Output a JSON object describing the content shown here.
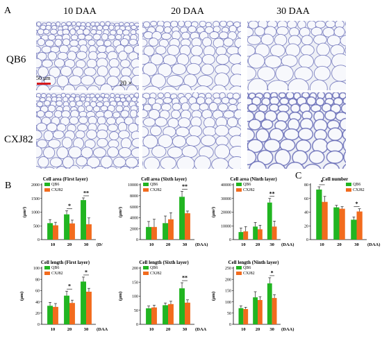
{
  "figure": {
    "panel_a": "A",
    "panel_b": "B",
    "panel_c": "C",
    "columns": [
      "10 DAA",
      "20 DAA",
      "30 DAA"
    ],
    "rows": [
      "QB6",
      "CXJ82"
    ],
    "scalebar": "50 μm",
    "magnification": "20 ×"
  },
  "colors": {
    "qb6": "#21b521",
    "cxj82": "#f26b1d",
    "stain": "#5a5fb0"
  },
  "chart_data": [
    {
      "type": "bar",
      "title": "Cell area (First layer)",
      "xlabel": "(D/",
      "ylabel": "(μm²)",
      "categories": [
        "10",
        "20",
        "30"
      ],
      "yticks": [
        "0",
        "500",
        "1000",
        "1500",
        "2000"
      ],
      "ylim": [
        0,
        2000
      ],
      "legend": "top-left",
      "series": [
        {
          "name": "QB6",
          "values": [
            600,
            920,
            1440
          ],
          "errors": [
            130,
            130,
            80
          ]
        },
        {
          "name": "CXJ82",
          "values": [
            520,
            590,
            560
          ],
          "errors": [
            110,
            120,
            230
          ]
        }
      ],
      "sig": [
        "",
        "*",
        "**"
      ]
    },
    {
      "type": "bar",
      "title": "Cell area (Sixth layer)",
      "xlabel": "(DAA)",
      "ylabel": "(μm²)",
      "categories": [
        "10",
        "20",
        "30"
      ],
      "yticks": [
        "0",
        "2000",
        "4000",
        "6000",
        "8000",
        "10000"
      ],
      "ylim": [
        0,
        10000
      ],
      "legend": "top-left",
      "series": [
        {
          "name": "QB6",
          "values": [
            2300,
            3000,
            7800
          ],
          "errors": [
            1000,
            1300,
            1000
          ]
        },
        {
          "name": "CXJ82",
          "values": [
            2300,
            3700,
            4800
          ],
          "errors": [
            1400,
            1200,
            400
          ]
        }
      ],
      "sig": [
        "",
        "",
        "**"
      ]
    },
    {
      "type": "bar",
      "title": "Cell area (Ninth layer)",
      "xlabel": "(DAA)",
      "ylabel": "(μm²)",
      "categories": [
        "10",
        "20",
        "30"
      ],
      "yticks": [
        "0",
        "10000",
        "20000",
        "30000",
        "40000"
      ],
      "ylim": [
        0,
        40000
      ],
      "legend": "top-left",
      "series": [
        {
          "name": "QB6",
          "values": [
            5500,
            9500,
            27000
          ],
          "errors": [
            3000,
            3000,
            3000
          ]
        },
        {
          "name": "CXJ82",
          "values": [
            6000,
            7500,
            9500
          ],
          "errors": [
            3500,
            3000,
            4000
          ]
        }
      ],
      "sig": [
        "",
        "",
        "**"
      ]
    },
    {
      "type": "bar",
      "title": "Cell number",
      "xlabel": "(DAA)",
      "ylabel": "",
      "categories": [
        "10",
        "20",
        "30"
      ],
      "yticks": [
        "0",
        "20",
        "40",
        "60",
        "80"
      ],
      "ylim": [
        0,
        80
      ],
      "legend": "top-right",
      "series": [
        {
          "name": "QB6",
          "values": [
            73,
            47,
            29
          ],
          "errors": [
            4,
            3,
            4
          ]
        },
        {
          "name": "CXJ82",
          "values": [
            55,
            45,
            41
          ],
          "errors": [
            8,
            3,
            4
          ]
        }
      ],
      "sig": [
        "*",
        "",
        "*"
      ]
    },
    {
      "type": "bar",
      "title": "Cell length (First layer)",
      "xlabel": "(DAA",
      "ylabel": "(μm)",
      "categories": [
        "10",
        "20",
        "30"
      ],
      "yticks": [
        "0",
        "20",
        "40",
        "60",
        "80",
        "100"
      ],
      "ylim": [
        0,
        100
      ],
      "legend": "top-left",
      "series": [
        {
          "name": "QB6",
          "values": [
            33,
            51,
            76
          ],
          "errors": [
            6,
            8,
            8
          ]
        },
        {
          "name": "CXJ82",
          "values": [
            31,
            38,
            58
          ],
          "errors": [
            6,
            5,
            6
          ]
        }
      ],
      "sig": [
        "",
        "*",
        "*"
      ]
    },
    {
      "type": "bar",
      "title": "Cell length (Sixth layer)",
      "xlabel": "(DAA",
      "ylabel": "(μm)",
      "categories": [
        "10",
        "20",
        "30"
      ],
      "yticks": [
        "0",
        "50",
        "100",
        "150",
        "200"
      ],
      "ylim": [
        0,
        200
      ],
      "legend": "top-left",
      "series": [
        {
          "name": "QB6",
          "values": [
            57,
            68,
            128
          ],
          "errors": [
            8,
            8,
            20
          ]
        },
        {
          "name": "CXJ82",
          "values": [
            60,
            72,
            77
          ],
          "errors": [
            8,
            10,
            10
          ]
        }
      ],
      "sig": [
        "",
        "",
        "**"
      ]
    },
    {
      "type": "bar",
      "title": "Cell length (Ninth layer)",
      "xlabel": "(DAA)",
      "ylabel": "(μm)",
      "categories": [
        "10",
        "20",
        "30"
      ],
      "yticks": [
        "0",
        "50",
        "100",
        "150",
        "200",
        "250"
      ],
      "ylim": [
        0,
        250
      ],
      "legend": "top-left",
      "series": [
        {
          "name": "QB6",
          "values": [
            72,
            120,
            182
          ],
          "errors": [
            10,
            25,
            25
          ]
        },
        {
          "name": "CXJ82",
          "values": [
            68,
            108,
            117
          ],
          "errors": [
            8,
            15,
            15
          ]
        }
      ],
      "sig": [
        "",
        "",
        "*"
      ]
    }
  ]
}
